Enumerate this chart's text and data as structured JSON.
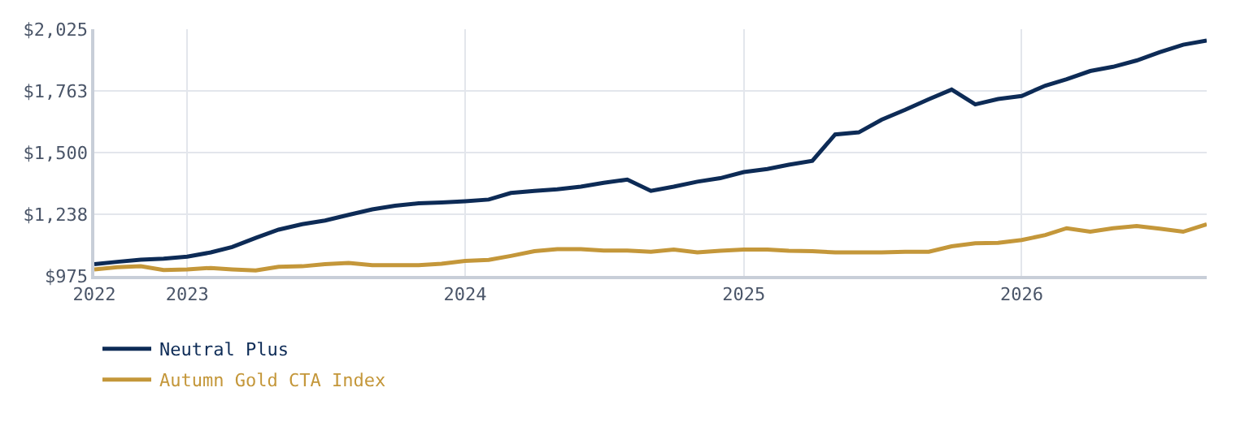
{
  "chart_data": {
    "type": "line",
    "x": [
      "2022-09",
      "2022-10",
      "2022-11",
      "2022-12",
      "2023-01",
      "2023-02",
      "2023-03",
      "2023-04",
      "2023-05",
      "2023-06",
      "2023-07",
      "2023-08",
      "2023-09",
      "2023-10",
      "2023-11",
      "2023-12",
      "2024-01",
      "2024-02",
      "2024-03",
      "2024-04",
      "2024-05",
      "2024-06",
      "2024-07",
      "2024-08",
      "2024-09",
      "2024-10",
      "2024-11",
      "2024-12",
      "2025-01",
      "2025-02",
      "2025-03",
      "2025-04",
      "2025-05",
      "2025-06",
      "2025-07",
      "2025-08",
      "2025-09",
      "2025-10",
      "2025-11",
      "2025-12",
      "2026-01",
      "2026-02",
      "2026-03",
      "2026-04",
      "2026-05",
      "2026-06",
      "2026-07",
      "2026-08",
      "2026-09"
    ],
    "series": [
      {
        "name": "Neutral Plus",
        "color": "#0d2b56",
        "values": [
          1025,
          1035,
          1044,
          1048,
          1057,
          1075,
          1098,
          1137,
          1172,
          1195,
          1211,
          1235,
          1258,
          1274,
          1284,
          1288,
          1293,
          1300,
          1328,
          1337,
          1344,
          1355,
          1371,
          1385,
          1337,
          1355,
          1376,
          1391,
          1417,
          1430,
          1448,
          1465,
          1577,
          1586,
          1640,
          1682,
          1727,
          1768,
          1705,
          1728,
          1741,
          1785,
          1812,
          1847,
          1865,
          1892,
          1927,
          1959,
          1977
        ]
      },
      {
        "name": "Autumn Gold CTA Index",
        "color": "#c4973a",
        "values": [
          1003,
          1012,
          1016,
          1000,
          1003,
          1009,
          1003,
          998,
          1014,
          1016,
          1025,
          1030,
          1021,
          1021,
          1021,
          1027,
          1039,
          1043,
          1060,
          1080,
          1089,
          1089,
          1083,
          1083,
          1078,
          1087,
          1075,
          1082,
          1087,
          1087,
          1082,
          1080,
          1075,
          1075,
          1075,
          1078,
          1078,
          1101,
          1114,
          1116,
          1128,
          1149,
          1178,
          1163,
          1178,
          1187,
          1176,
          1163,
          1195
        ]
      }
    ],
    "xlim": [
      "2022-09",
      "2026-09"
    ],
    "xticks": [
      {
        "value": "2022-09",
        "label": "2022"
      },
      {
        "value": "2023-01",
        "label": "2023"
      },
      {
        "value": "2024-01",
        "label": "2024"
      },
      {
        "value": "2025-01",
        "label": "2025"
      },
      {
        "value": "2026-01",
        "label": "2026"
      }
    ],
    "ylim": [
      975,
      2025
    ],
    "yticks": [
      {
        "value": 975,
        "label": "$975"
      },
      {
        "value": 1238,
        "label": "$1,238"
      },
      {
        "value": 1500,
        "label": "$1,500"
      },
      {
        "value": 1763,
        "label": "$1,763"
      },
      {
        "value": 2025,
        "label": "$2,025"
      }
    ],
    "grid": true,
    "legend": "bottom",
    "marker": "none",
    "line_style": "solid"
  }
}
